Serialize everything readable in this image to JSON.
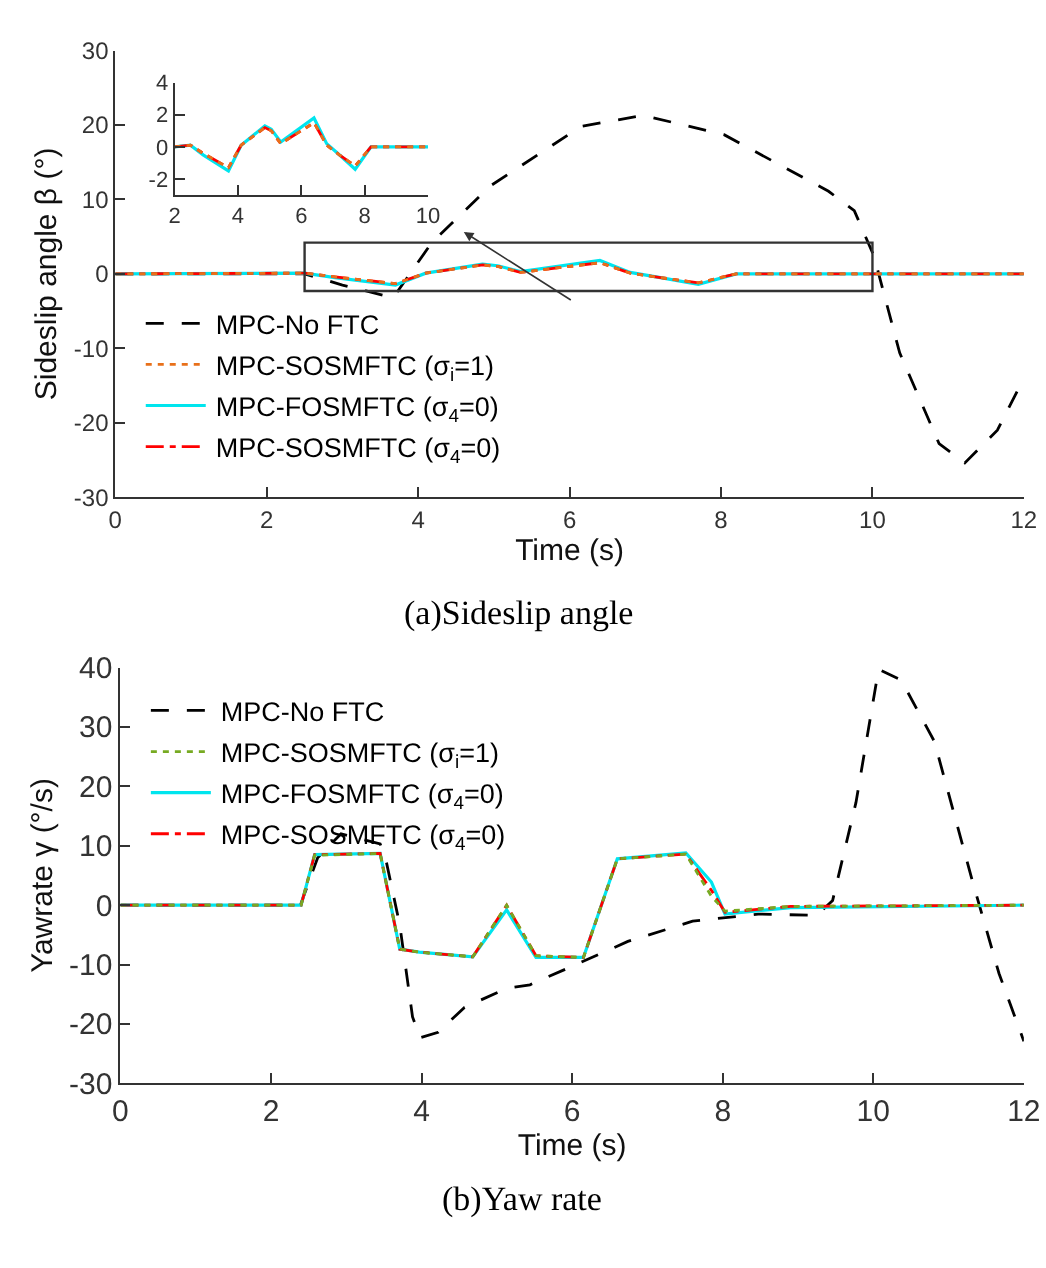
{
  "chart_data": [
    {
      "type": "line",
      "title": "(a)Sideslip angle",
      "xlabel": "Time (s)",
      "ylabel": "Sideslip angle β (°)",
      "xlim": [
        0,
        12
      ],
      "xticks": [
        0,
        2,
        4,
        6,
        8,
        10,
        12
      ],
      "ylim": [
        -30,
        30
      ],
      "yticks": [
        -30,
        -20,
        -10,
        0,
        10,
        20,
        30
      ],
      "legend": "bottom left",
      "marker": "none",
      "series": [
        {
          "name": "MPC-No FTC",
          "color": "#000000",
          "line_style": "dashed",
          "x": [
            0,
            2.5,
            3.0,
            3.67,
            4.18,
            4.95,
            6.15,
            6.97,
            8.04,
            9.42,
            9.76,
            10.02,
            10.36,
            10.88,
            11.22,
            11.65,
            12
          ],
          "values": [
            0,
            0,
            -1.5,
            -3.2,
            4.2,
            11.8,
            19.8,
            21.3,
            18.7,
            11.1,
            8.5,
            2.4,
            -10.6,
            -22.8,
            -25.4,
            -21,
            -14
          ]
        },
        {
          "name": "MPC-SOSMFTC (σ$_{i}$=1)",
          "color": "#e8701a",
          "line_style": "dotted",
          "x": [
            0,
            2.5,
            2.9,
            3.7,
            4.1,
            4.85,
            5.05,
            5.35,
            6.4,
            6.8,
            7.2,
            7.7,
            8.2,
            12
          ],
          "values": [
            0,
            0.1,
            -0.4,
            -1.3,
            0.1,
            1.2,
            1.0,
            0.2,
            1.5,
            0.1,
            -0.5,
            -1.2,
            0,
            0
          ]
        },
        {
          "name": "MPC-FOSMFTC (σ$_{4}$=0)",
          "color": "#00e5ee",
          "line_style": "solid",
          "x": [
            0,
            2.5,
            2.9,
            3.7,
            4.1,
            4.85,
            5.05,
            5.35,
            6.4,
            6.8,
            7.2,
            7.7,
            8.2,
            12
          ],
          "values": [
            0,
            0.1,
            -0.5,
            -1.5,
            0.1,
            1.3,
            1.1,
            0.3,
            1.8,
            0.2,
            -0.5,
            -1.4,
            0,
            0
          ]
        },
        {
          "name": "MPC-SOSMFTC (σ$_{4}$=0)",
          "color": "#ff0000",
          "line_style": "dashdot",
          "x": [
            0,
            2.5,
            2.9,
            3.7,
            4.1,
            4.85,
            5.05,
            5.35,
            6.4,
            6.8,
            7.2,
            7.7,
            8.2,
            12
          ],
          "values": [
            0,
            0.1,
            -0.4,
            -1.3,
            0.1,
            1.2,
            1.0,
            0.2,
            1.5,
            0.1,
            -0.5,
            -1.2,
            0,
            0
          ]
        }
      ]
    },
    {
      "type": "line",
      "xlim": [
        2,
        10
      ],
      "xticks": [
        2,
        4,
        6,
        8,
        10
      ],
      "ylim": [
        -3,
        4
      ],
      "yticks": [
        -2,
        0,
        2,
        4
      ],
      "legend": false,
      "marker": "none",
      "series": [
        {
          "color": "#e8701a",
          "line_style": "dotted",
          "x": [
            2,
            2.5,
            2.9,
            3.7,
            4.1,
            4.85,
            5.05,
            5.35,
            6.4,
            6.8,
            7.2,
            7.7,
            8.2,
            10
          ],
          "values": [
            0,
            0.1,
            -0.4,
            -1.3,
            0.1,
            1.2,
            1.0,
            0.2,
            1.5,
            0.1,
            -0.5,
            -1.2,
            0,
            0
          ]
        },
        {
          "color": "#00e5ee",
          "line_style": "solid",
          "x": [
            2,
            2.5,
            2.9,
            3.7,
            4.1,
            4.85,
            5.05,
            5.35,
            6.4,
            6.8,
            7.2,
            7.7,
            8.2,
            10
          ],
          "values": [
            0,
            0.1,
            -0.5,
            -1.5,
            0.1,
            1.3,
            1.1,
            0.3,
            1.8,
            0.2,
            -0.5,
            -1.4,
            0,
            0
          ]
        },
        {
          "color": "#ff0000",
          "line_style": "dashdot",
          "x": [
            2,
            2.5,
            2.9,
            3.7,
            4.1,
            4.85,
            5.05,
            5.35,
            6.4,
            6.8,
            7.2,
            7.7,
            8.2,
            10
          ],
          "values": [
            0,
            0.1,
            -0.4,
            -1.3,
            0.1,
            1.2,
            1.0,
            0.2,
            1.5,
            0.1,
            -0.5,
            -1.2,
            0,
            0
          ]
        }
      ]
    },
    {
      "type": "line",
      "title": "(b)Yaw rate",
      "xlabel": "Time (s)",
      "ylabel": "Yawrate γ (°/s)",
      "xlim": [
        0,
        12
      ],
      "xticks": [
        0,
        2,
        4,
        6,
        8,
        10,
        12
      ],
      "ylim": [
        -30,
        40
      ],
      "yticks": [
        -30,
        -20,
        -10,
        0,
        10,
        20,
        30,
        40
      ],
      "legend": "top left",
      "marker": "none",
      "series": [
        {
          "name": "MPC-No FTC",
          "color": "#000000",
          "line_style": "dashed",
          "x": [
            0,
            2.39,
            2.62,
            2.93,
            3.45,
            3.52,
            3.71,
            3.88,
            3.98,
            4.22,
            4.57,
            5.13,
            5.44,
            5.96,
            6.74,
            7.6,
            8.47,
            9.25,
            9.46,
            9.77,
            10.07,
            10.37,
            10.81,
            11.32,
            11.67,
            12
          ],
          "values": [
            0,
            0,
            8,
            12,
            10.3,
            8,
            -3.3,
            -18.8,
            -22.3,
            -21.4,
            -17.2,
            -14,
            -13.4,
            -10.5,
            -6.1,
            -2.7,
            -1.5,
            -1.7,
            0.8,
            17.3,
            39.7,
            37.9,
            27.6,
            3.9,
            -11.5,
            -22.9
          ]
        },
        {
          "name": "MPC-SOSMFTC (σ$_{i}$=1)",
          "color": "#77aa22",
          "line_style": "dotted",
          "x": [
            0,
            2.4,
            2.58,
            3.45,
            3.71,
            3.97,
            4.68,
            5.13,
            5.52,
            6.15,
            6.6,
            7.51,
            7.85,
            8.03,
            8.9,
            12
          ],
          "values": [
            0,
            0,
            8.4,
            8.7,
            -7.4,
            -7.9,
            -8.7,
            0,
            -8.5,
            -8.8,
            7.8,
            8.6,
            1.5,
            -1.0,
            -0.2,
            0
          ]
        },
        {
          "name": "MPC-FOSMFTC (σ$_{4}$=0)",
          "color": "#00e5ee",
          "line_style": "solid",
          "x": [
            0,
            2.4,
            2.58,
            3.45,
            3.71,
            3.97,
            4.68,
            5.13,
            5.52,
            6.15,
            6.6,
            7.51,
            7.85,
            8.03,
            8.9,
            12
          ],
          "values": [
            0,
            0,
            8.5,
            8.7,
            -7.4,
            -7.9,
            -8.7,
            -0.8,
            -8.8,
            -8.8,
            7.8,
            8.8,
            3.9,
            -1.5,
            -0.4,
            0
          ]
        },
        {
          "name": "MPC-SOSMFTC (σ$_{4}$=0)",
          "color": "#ff0000",
          "line_style": "dashdot",
          "x": [
            0,
            2.4,
            2.58,
            3.45,
            3.71,
            3.97,
            4.68,
            5.13,
            5.52,
            6.15,
            6.6,
            7.51,
            7.85,
            8.03,
            8.9,
            12
          ],
          "values": [
            0,
            0,
            8.5,
            8.7,
            -7.4,
            -7.9,
            -8.7,
            0,
            -8.5,
            -8.8,
            7.8,
            8.6,
            2.5,
            -1.2,
            -0.2,
            0
          ]
        }
      ]
    }
  ]
}
